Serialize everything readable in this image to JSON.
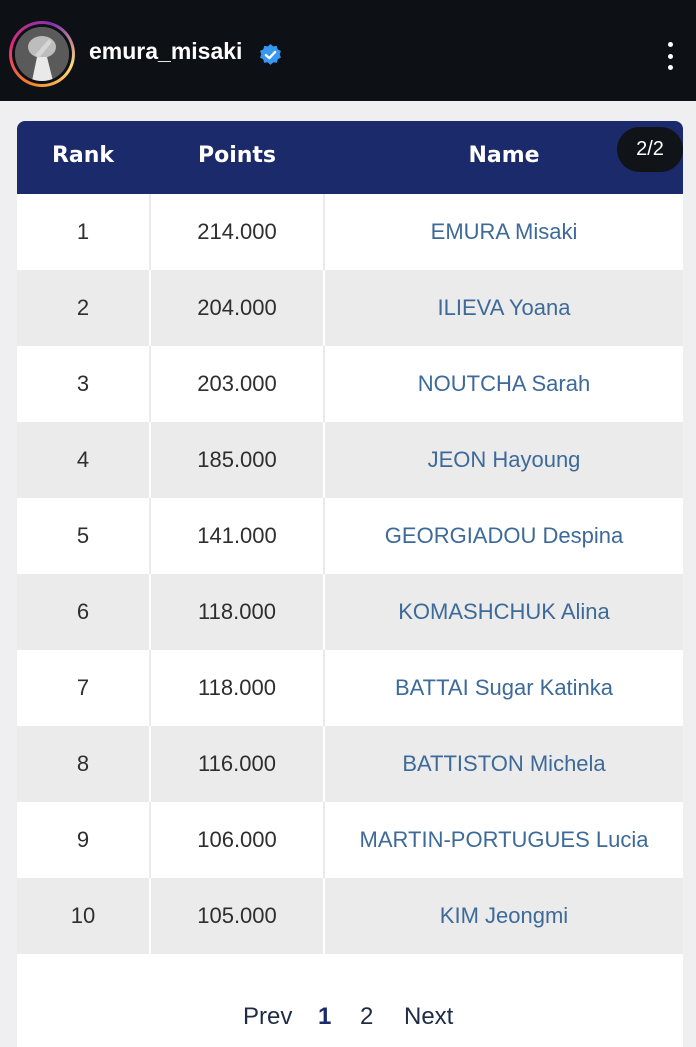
{
  "header": {
    "username": "emura_misaki"
  },
  "post": {
    "counter": "2/2"
  },
  "table": {
    "columns": [
      "Rank",
      "Points",
      "Name"
    ],
    "rows": [
      {
        "rank": "1",
        "points": "214.000",
        "name": "EMURA Misaki"
      },
      {
        "rank": "2",
        "points": "204.000",
        "name": "ILIEVA Yoana"
      },
      {
        "rank": "3",
        "points": "203.000",
        "name": "NOUTCHA Sarah"
      },
      {
        "rank": "4",
        "points": "185.000",
        "name": "JEON Hayoung"
      },
      {
        "rank": "5",
        "points": "141.000",
        "name": "GEORGIADOU Despina"
      },
      {
        "rank": "6",
        "points": "118.000",
        "name": "KOMASHCHUK Alina"
      },
      {
        "rank": "7",
        "points": "118.000",
        "name": "BATTAI Sugar Katinka"
      },
      {
        "rank": "8",
        "points": "116.000",
        "name": "BATTISTON Michela"
      },
      {
        "rank": "9",
        "points": "106.000",
        "name": "MARTIN-PORTUGUES Lucia"
      },
      {
        "rank": "10",
        "points": "105.000",
        "name": "KIM Jeongmi"
      }
    ]
  },
  "pagination": {
    "prev": "Prev",
    "pages": [
      "1",
      "2"
    ],
    "next": "Next"
  },
  "colors": {
    "header_bg": "#1b2a6b",
    "name_link": "#3d6a98",
    "verified": "#3897f0"
  }
}
